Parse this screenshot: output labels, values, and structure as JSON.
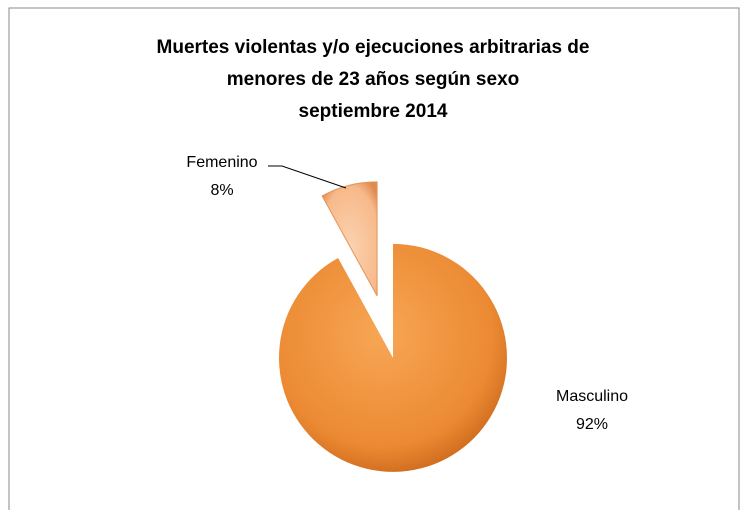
{
  "chart_data": {
    "type": "pie",
    "title": [
      "Muertes violentas y/o ejecuciones arbitrarias de",
      "menores de 23 años según sexo",
      "septiembre  2014"
    ],
    "categories": [
      "Masculino",
      "Femenino"
    ],
    "values": [
      92,
      8
    ],
    "value_labels": [
      "92%",
      "8%"
    ],
    "colors": [
      "#ec8a33",
      "#f7b98a"
    ]
  }
}
